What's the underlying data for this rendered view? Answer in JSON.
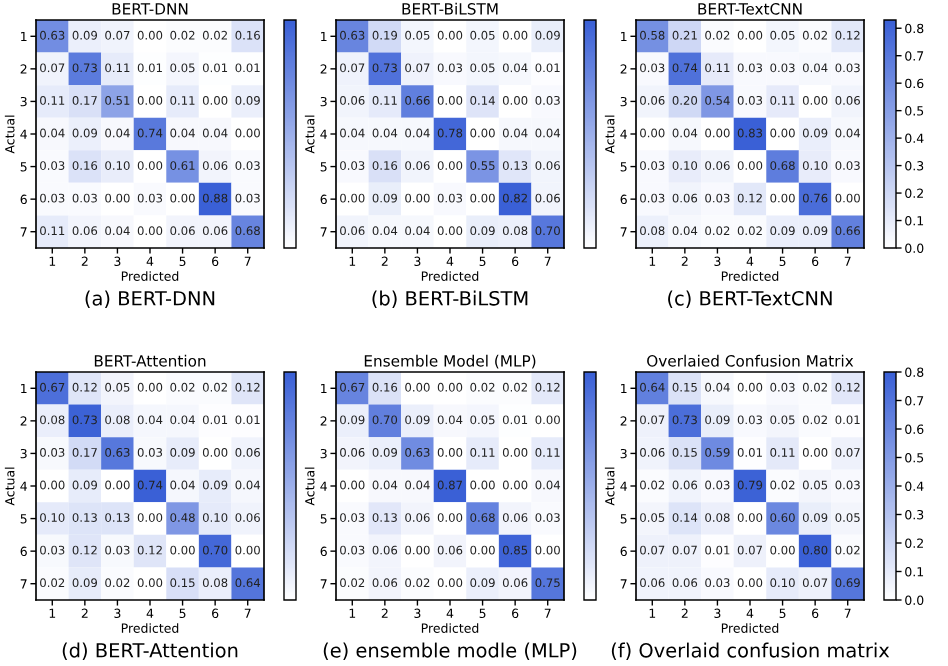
{
  "chart_data": [
    {
      "type": "heatmap",
      "title": "BERT-DNN",
      "xlabel": "Predicted",
      "ylabel": "Actual",
      "annotations": [
        "(a) BERT-DNN"
      ],
      "categories": [
        "1",
        "2",
        "3",
        "4",
        "5",
        "6",
        "7"
      ],
      "y_categories": [
        "1",
        "2",
        "3",
        "4",
        "5",
        "6",
        "7"
      ],
      "cells": [
        [
          0.63,
          0.09,
          0.07,
          0.0,
          0.02,
          0.02,
          0.16
        ],
        [
          0.07,
          0.73,
          0.11,
          0.01,
          0.05,
          0.01,
          0.01
        ],
        [
          0.11,
          0.17,
          0.51,
          0.0,
          0.11,
          0.0,
          0.09
        ],
        [
          0.04,
          0.09,
          0.04,
          0.74,
          0.04,
          0.04,
          0.0
        ],
        [
          0.03,
          0.16,
          0.1,
          0.0,
          0.61,
          0.06,
          0.03
        ],
        [
          0.03,
          0.03,
          0.0,
          0.03,
          0.0,
          0.88,
          0.03
        ],
        [
          0.11,
          0.06,
          0.04,
          0.0,
          0.06,
          0.06,
          0.68
        ]
      ],
      "cell_labels": [
        [
          "0.63",
          "0.09",
          "0.07",
          "0.00",
          "0.02",
          "0.02",
          "0.16"
        ],
        [
          "0.07",
          "0.73",
          "0.11",
          "0.01",
          "0.05",
          "0.01",
          "0.01"
        ],
        [
          "0.11",
          "0.17",
          "0.51",
          "0.00",
          "0.11",
          "0.00",
          "0.09"
        ],
        [
          "0.04",
          "0.09",
          "0.04",
          "0.74",
          "0.04",
          "0.04",
          "0.00"
        ],
        [
          "0.03",
          "0.16",
          "0.10",
          "0.00",
          "0.61",
          "0.06",
          "0.03"
        ],
        [
          "0.03",
          "0.03",
          "0.00",
          "0.03",
          "0.00",
          "0.88",
          "0.03"
        ],
        [
          "0.11",
          "0.06",
          "0.04",
          "0.00",
          "0.06",
          "0.06",
          "0.68"
        ]
      ]
    },
    {
      "type": "heatmap",
      "title": "BERT-BiLSTM",
      "xlabel": "Predicted",
      "ylabel": "Actual",
      "annotations": [
        "(b) BERT-BiLSTM"
      ],
      "categories": [
        "1",
        "2",
        "3",
        "4",
        "5",
        "6",
        "7"
      ],
      "y_categories": [
        "1",
        "2",
        "3",
        "4",
        "5",
        "6",
        "7"
      ],
      "cells": [
        [
          0.63,
          0.19,
          0.05,
          0.0,
          0.05,
          0.0,
          0.09
        ],
        [
          0.07,
          0.73,
          0.07,
          0.03,
          0.05,
          0.04,
          0.01
        ],
        [
          0.06,
          0.11,
          0.66,
          0.0,
          0.14,
          0.0,
          0.03
        ],
        [
          0.04,
          0.04,
          0.04,
          0.78,
          0.0,
          0.04,
          0.04
        ],
        [
          0.03,
          0.16,
          0.06,
          0.0,
          0.55,
          0.13,
          0.06
        ],
        [
          0.0,
          0.09,
          0.0,
          0.03,
          0.0,
          0.82,
          0.06
        ],
        [
          0.06,
          0.04,
          0.04,
          0.0,
          0.09,
          0.08,
          0.7
        ]
      ],
      "cell_labels": [
        [
          "0.63",
          "0.19",
          "0.05",
          "0.00",
          "0.05",
          "0.00",
          "0.09"
        ],
        [
          "0.07",
          "0.73",
          "0.07",
          "0.03",
          "0.05",
          "0.04",
          "0.01"
        ],
        [
          "0.06",
          "0.11",
          "0.66",
          "0.00",
          "0.14",
          "0.00",
          "0.03"
        ],
        [
          "0.04",
          "0.04",
          "0.04",
          "0.78",
          "0.00",
          "0.04",
          "0.04"
        ],
        [
          "0.03",
          "0.16",
          "0.06",
          "0.00",
          "0.55",
          "0.13",
          "0.06"
        ],
        [
          "0.00",
          "0.09",
          "0.00",
          "0.03",
          "0.00",
          "0.82",
          "0.06"
        ],
        [
          "0.06",
          "0.04",
          "0.04",
          "0.00",
          "0.09",
          "0.08",
          "0.70"
        ]
      ]
    },
    {
      "type": "heatmap",
      "title": "BERT-TextCNN",
      "xlabel": "Predicted",
      "ylabel": "Actual",
      "annotations": [
        "(c) BERT-TextCNN"
      ],
      "categories": [
        "1",
        "2",
        "3",
        "4",
        "5",
        "6",
        "7"
      ],
      "y_categories": [
        "1",
        "2",
        "3",
        "4",
        "5",
        "6",
        "7"
      ],
      "cells": [
        [
          0.58,
          0.21,
          0.02,
          0.0,
          0.05,
          0.02,
          0.12
        ],
        [
          0.03,
          0.74,
          0.11,
          0.03,
          0.03,
          0.04,
          0.03
        ],
        [
          0.06,
          0.2,
          0.54,
          0.03,
          0.11,
          0.0,
          0.06
        ],
        [
          0.0,
          0.04,
          0.0,
          0.83,
          0.0,
          0.09,
          0.04
        ],
        [
          0.03,
          0.1,
          0.06,
          0.0,
          0.68,
          0.1,
          0.03
        ],
        [
          0.03,
          0.06,
          0.03,
          0.12,
          0.0,
          0.76,
          0.0
        ],
        [
          0.08,
          0.04,
          0.02,
          0.02,
          0.09,
          0.09,
          0.66
        ]
      ],
      "cell_labels": [
        [
          "0.58",
          "0.21",
          "0.02",
          "0.00",
          "0.05",
          "0.02",
          "0.12"
        ],
        [
          "0.03",
          "0.74",
          "0.11",
          "0.03",
          "0.03",
          "0.04",
          "0.03"
        ],
        [
          "0.06",
          "0.20",
          "0.54",
          "0.03",
          "0.11",
          "0.00",
          "0.06"
        ],
        [
          "0.00",
          "0.04",
          "0.00",
          "0.83",
          "0.00",
          "0.09",
          "0.04"
        ],
        [
          "0.03",
          "0.10",
          "0.06",
          "0.00",
          "0.68",
          "0.10",
          "0.03"
        ],
        [
          "0.03",
          "0.06",
          "0.03",
          "0.12",
          "0.00",
          "0.76",
          "0.00"
        ],
        [
          "0.08",
          "0.04",
          "0.02",
          "0.02",
          "0.09",
          "0.09",
          "0.66"
        ]
      ],
      "clim": [
        0,
        0.83
      ],
      "cticks": [
        {
          "value": 0,
          "label": "0.0"
        },
        0.1,
        0.2,
        0.3,
        0.4,
        0.5,
        0.6,
        0.7,
        0.8
      ]
    },
    {
      "type": "heatmap",
      "title": "BERT-Attention",
      "xlabel": "Predicted",
      "ylabel": "Actual",
      "annotations": [
        "(d) BERT-Attention"
      ],
      "categories": [
        "1",
        "2",
        "3",
        "4",
        "5",
        "6",
        "7"
      ],
      "y_categories": [
        "1",
        "2",
        "3",
        "4",
        "5",
        "6",
        "7"
      ],
      "cells": [
        [
          0.67,
          0.12,
          0.05,
          0.0,
          0.02,
          0.02,
          0.12
        ],
        [
          0.08,
          0.73,
          0.08,
          0.04,
          0.04,
          0.01,
          0.01
        ],
        [
          0.03,
          0.17,
          0.63,
          0.03,
          0.09,
          0.0,
          0.06
        ],
        [
          0.0,
          0.09,
          0.0,
          0.74,
          0.04,
          0.09,
          0.04
        ],
        [
          0.1,
          0.13,
          0.13,
          0.0,
          0.48,
          0.1,
          0.06
        ],
        [
          0.03,
          0.12,
          0.03,
          0.12,
          0.0,
          0.7,
          0.0
        ],
        [
          0.02,
          0.09,
          0.02,
          0.0,
          0.15,
          0.08,
          0.64
        ]
      ],
      "cell_labels": [
        [
          "0.67",
          "0.12",
          "0.05",
          "0.00",
          "0.02",
          "0.02",
          "0.12"
        ],
        [
          "0.08",
          "0.73",
          "0.08",
          "0.04",
          "0.04",
          "0.01",
          "0.01"
        ],
        [
          "0.03",
          "0.17",
          "0.63",
          "0.03",
          "0.09",
          "0.00",
          "0.06"
        ],
        [
          "0.00",
          "0.09",
          "0.00",
          "0.74",
          "0.04",
          "0.09",
          "0.04"
        ],
        [
          "0.10",
          "0.13",
          "0.13",
          "0.00",
          "0.48",
          "0.10",
          "0.06"
        ],
        [
          "0.03",
          "0.12",
          "0.03",
          "0.12",
          "0.00",
          "0.70",
          "0.00"
        ],
        [
          "0.02",
          "0.09",
          "0.02",
          "0.00",
          "0.15",
          "0.08",
          "0.64"
        ]
      ]
    },
    {
      "type": "heatmap",
      "title": "Ensemble Model (MLP)",
      "xlabel": "Predicted",
      "ylabel": "Actual",
      "annotations": [
        "(e) ensemble modle (MLP)"
      ],
      "categories": [
        "1",
        "2",
        "3",
        "4",
        "5",
        "6",
        "7"
      ],
      "y_categories": [
        "1",
        "2",
        "3",
        "4",
        "5",
        "6",
        "7"
      ],
      "cells": [
        [
          0.67,
          0.16,
          0.0,
          0.0,
          0.02,
          0.02,
          0.12
        ],
        [
          0.09,
          0.7,
          0.09,
          0.04,
          0.05,
          0.01,
          0.0
        ],
        [
          0.06,
          0.09,
          0.63,
          0.0,
          0.11,
          0.0,
          0.11
        ],
        [
          0.0,
          0.04,
          0.04,
          0.87,
          0.0,
          0.0,
          0.04
        ],
        [
          0.03,
          0.13,
          0.06,
          0.0,
          0.68,
          0.06,
          0.03
        ],
        [
          0.03,
          0.06,
          0.0,
          0.06,
          0.0,
          0.85,
          0.0
        ],
        [
          0.02,
          0.06,
          0.02,
          0.0,
          0.09,
          0.06,
          0.75
        ]
      ],
      "cell_labels": [
        [
          "0.67",
          "0.16",
          "0.00",
          "0.00",
          "0.02",
          "0.02",
          "0.12"
        ],
        [
          "0.09",
          "0.70",
          "0.09",
          "0.04",
          "0.05",
          "0.01",
          "0.00"
        ],
        [
          "0.06",
          "0.09",
          "0.63",
          "0.00",
          "0.11",
          "0.00",
          "0.11"
        ],
        [
          "0.00",
          "0.04",
          "0.04",
          "0.87",
          "0.00",
          "0.00",
          "0.04"
        ],
        [
          "0.03",
          "0.13",
          "0.06",
          "0.00",
          "0.68",
          "0.06",
          "0.03"
        ],
        [
          "0.03",
          "0.06",
          "0.00",
          "0.06",
          "0.00",
          "0.85",
          "0.00"
        ],
        [
          "0.02",
          "0.06",
          "0.02",
          "0.00",
          "0.09",
          "0.06",
          "0.75"
        ]
      ]
    },
    {
      "type": "heatmap",
      "title": "Overlaied Confusion Matrix",
      "xlabel": "Predicted",
      "ylabel": "Actual",
      "annotations": [
        "(f) Overlaid confusion matrix"
      ],
      "categories": [
        "1",
        "2",
        "3",
        "4",
        "5",
        "6",
        "7"
      ],
      "y_categories": [
        "1",
        "2",
        "3",
        "4",
        "5",
        "6",
        "7"
      ],
      "cells": [
        [
          0.64,
          0.15,
          0.04,
          0.0,
          0.03,
          0.02,
          0.12
        ],
        [
          0.07,
          0.73,
          0.09,
          0.03,
          0.05,
          0.02,
          0.01
        ],
        [
          0.06,
          0.15,
          0.59,
          0.01,
          0.11,
          0.0,
          0.07
        ],
        [
          0.02,
          0.06,
          0.03,
          0.79,
          0.02,
          0.05,
          0.03
        ],
        [
          0.05,
          0.14,
          0.08,
          0.0,
          0.6,
          0.09,
          0.05
        ],
        [
          0.07,
          0.07,
          0.01,
          0.07,
          0.0,
          0.8,
          0.02
        ],
        [
          0.06,
          0.06,
          0.03,
          0.0,
          0.1,
          0.07,
          0.69
        ]
      ],
      "cell_labels": [
        [
          "0.64",
          "0.15",
          "0.04",
          "0.00",
          "0.03",
          "0.02",
          "0.12"
        ],
        [
          "0.07",
          "0.73",
          "0.09",
          "0.03",
          "0.05",
          "0.02",
          "0.01"
        ],
        [
          "0.06",
          "0.15",
          "0.59",
          "0.01",
          "0.11",
          "0.00",
          "0.07"
        ],
        [
          "0.02",
          "0.06",
          "0.03",
          "0.79",
          "0.02",
          "0.05",
          "0.03"
        ],
        [
          "0.05",
          "0.14",
          "0.08",
          "0.00",
          "0.60",
          "0.09",
          "0.05"
        ],
        [
          "0.07",
          "0.07",
          "0.01",
          "0.07",
          "0.00",
          "0.80",
          "0.02"
        ],
        [
          "0.06",
          "0.06",
          "0.03",
          "0.00",
          "0.10",
          "0.07",
          "0.69"
        ]
      ],
      "clim": [
        0,
        0.8
      ],
      "cticks": [
        {
          "value": 0,
          "label": "0.0"
        },
        0.1,
        0.2,
        0.3,
        0.4,
        0.5,
        0.6,
        0.7,
        0.8
      ]
    }
  ]
}
